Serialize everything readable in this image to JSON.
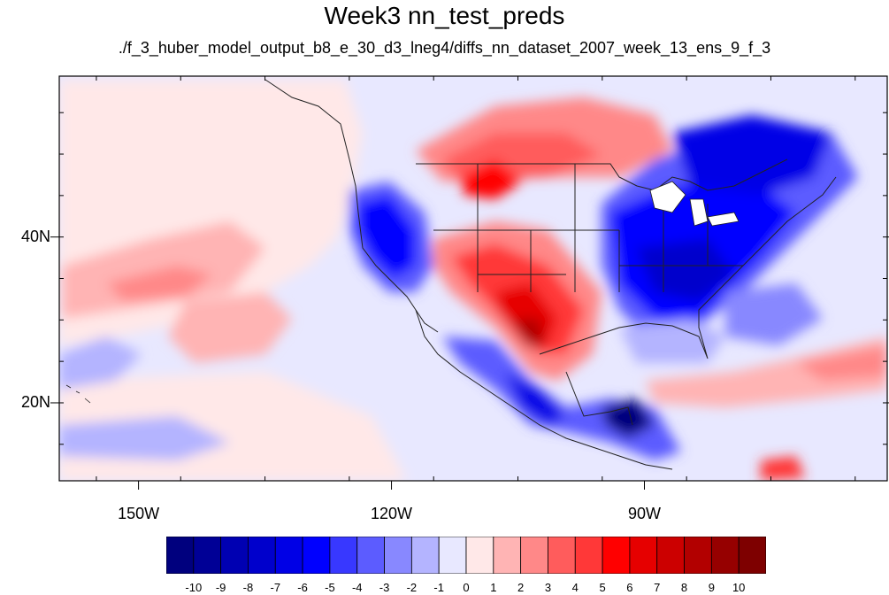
{
  "title": "Week3 nn_test_preds",
  "subtitle": "./f_3_huber_model_output_b8_e_30_d3_lneg4/diffs_nn_dataset_2007_week_13_ens_9_f_3",
  "lat_labels": [
    {
      "text": "40N",
      "lat": 40
    },
    {
      "text": "20N",
      "lat": 20
    }
  ],
  "lon_labels": [
    {
      "text": "150W",
      "lon": -150
    },
    {
      "text": "120W",
      "lon": -120
    },
    {
      "text": "90W",
      "lon": -90
    }
  ],
  "map_extent": {
    "lon_min": -159.4,
    "lon_max": -61.2,
    "lat_min": 10.6,
    "lat_max": 59.4
  },
  "colorbar": {
    "labels": [
      "-10",
      "-9",
      "-8",
      "-7",
      "-6",
      "-5",
      "-4",
      "-3",
      "-2",
      "-1",
      "0",
      "1",
      "2",
      "3",
      "4",
      "5",
      "6",
      "7",
      "8",
      "9",
      "10"
    ],
    "colors": [
      "#00007e",
      "#000096",
      "#0000b2",
      "#0000cc",
      "#0000e6",
      "#0000ff",
      "#3838ff",
      "#5c5cff",
      "#8888ff",
      "#b4b4ff",
      "#e8e8ff",
      "#ffe8e8",
      "#ffb4b4",
      "#ff8888",
      "#ff5c5c",
      "#ff3838",
      "#ff0000",
      "#e60000",
      "#cc0000",
      "#b20000",
      "#960000",
      "#7e0000"
    ]
  },
  "colors": {
    "land_outline": "#222222",
    "frame": "#000000"
  }
}
